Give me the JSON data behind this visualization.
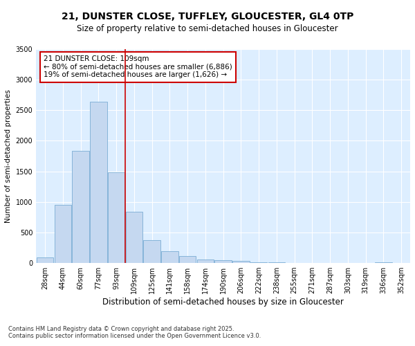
{
  "title": "21, DUNSTER CLOSE, TUFFLEY, GLOUCESTER, GL4 0TP",
  "subtitle": "Size of property relative to semi-detached houses in Gloucester",
  "xlabel": "Distribution of semi-detached houses by size in Gloucester",
  "ylabel": "Number of semi-detached properties",
  "categories": [
    "28sqm",
    "44sqm",
    "60sqm",
    "77sqm",
    "93sqm",
    "109sqm",
    "125sqm",
    "141sqm",
    "158sqm",
    "174sqm",
    "190sqm",
    "206sqm",
    "222sqm",
    "238sqm",
    "255sqm",
    "271sqm",
    "287sqm",
    "303sqm",
    "319sqm",
    "336sqm",
    "352sqm"
  ],
  "values": [
    95,
    950,
    1830,
    2640,
    1480,
    840,
    375,
    190,
    115,
    60,
    45,
    30,
    15,
    15,
    5,
    5,
    5,
    5,
    0,
    15,
    0
  ],
  "bar_color": "#c5d8f0",
  "bar_edge_color": "#7aadd4",
  "highlight_index": 5,
  "highlight_line_color": "#cc0000",
  "annotation_text": "21 DUNSTER CLOSE: 109sqm\n← 80% of semi-detached houses are smaller (6,886)\n19% of semi-detached houses are larger (1,626) →",
  "annotation_box_color": "#cc0000",
  "ylim": [
    0,
    3500
  ],
  "yticks": [
    0,
    500,
    1000,
    1500,
    2000,
    2500,
    3000,
    3500
  ],
  "background_color": "#ddeeff",
  "grid_color": "#ffffff",
  "footer": "Contains HM Land Registry data © Crown copyright and database right 2025.\nContains public sector information licensed under the Open Government Licence v3.0.",
  "title_fontsize": 10,
  "subtitle_fontsize": 8.5,
  "xlabel_fontsize": 8.5,
  "ylabel_fontsize": 7.5,
  "tick_fontsize": 7,
  "annotation_fontsize": 7.5,
  "footer_fontsize": 6
}
